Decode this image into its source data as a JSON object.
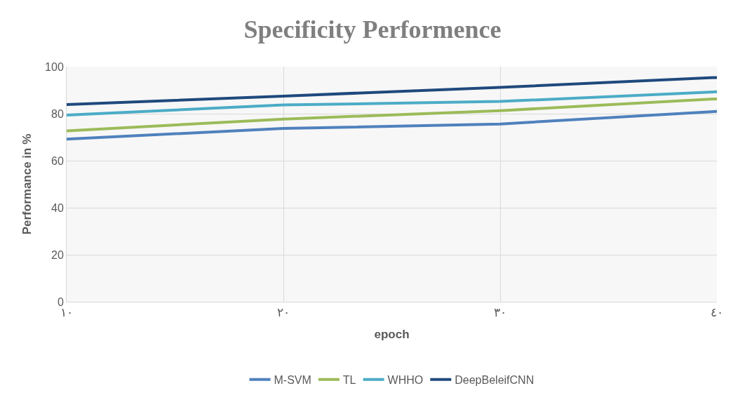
{
  "chart_data": {
    "type": "line",
    "title": "Specificity Performence",
    "xlabel": "epoch",
    "ylabel": "Performance in %",
    "categories": [
      "١٠",
      "٢٠",
      "٣٠",
      "٤٠"
    ],
    "series": [
      {
        "name": "M-SVM",
        "color": "#4f81bd",
        "values": [
          69.2,
          73.7,
          75.6,
          81.0
        ]
      },
      {
        "name": "TL",
        "color": "#9bbb59",
        "values": [
          72.7,
          77.7,
          81.3,
          86.3
        ]
      },
      {
        "name": "WHHO",
        "color": "#4bacc6",
        "values": [
          79.4,
          83.7,
          85.2,
          89.3
        ]
      },
      {
        "name": "DeepBeleifCNN",
        "color": "#1f497d",
        "values": [
          83.9,
          87.5,
          91.2,
          95.4
        ]
      }
    ],
    "ylim": [
      0,
      100
    ],
    "yticks": [
      0,
      20,
      40,
      60,
      80,
      100
    ],
    "grid": true,
    "legend": "bottom",
    "line_style": "solid",
    "marker": "none"
  }
}
